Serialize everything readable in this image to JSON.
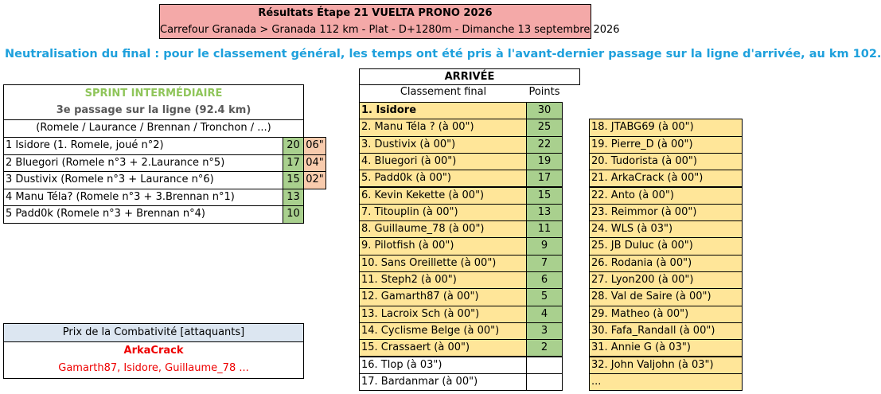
{
  "header": {
    "title": "Résultats Étape 21 VUELTA PRONO 2026",
    "subtitle": "Carrefour Granada > Granada 112 km - Plat - D+1280m  - Dimanche 13 septembre 2026"
  },
  "note": "Neutralisation du final : pour le classement général, les temps ont été pris à l'avant-dernier passage sur la ligne d'arrivée, au km 102.",
  "sprint": {
    "title": "SPRINT INTERMÉDIAIRE",
    "subtitle": "3e passage sur la ligne (92.4 km)",
    "riders": "(Romele / Laurance / Brennan / Tronchon / ...)",
    "rows": [
      {
        "label": "1 Isidore (1. Romele, joué n°2)",
        "points": 20,
        "bonus": "06\""
      },
      {
        "label": "2 Bluegori (Romele n°3 + 2.Laurance n°5)",
        "points": 17,
        "bonus": "04\""
      },
      {
        "label": "3 Dustivix (Romele n°3 + Laurance n°6)",
        "points": 15,
        "bonus": "02\""
      },
      {
        "label": "4 Manu Téla? (Romele n°3 + 3.Brennan n°1)",
        "points": 13
      },
      {
        "label": "5 Padd0k (Romele n°3 + Brennan n°4)",
        "points": 10
      }
    ]
  },
  "combativite": {
    "title": "Prix de la Combativité [attaquants]",
    "winner": "ArkaCrack",
    "others": "Gamarth87, Isidore, Guillaume_78 ..."
  },
  "arrivee": {
    "title": "ARRIVÉE",
    "col_name": "Classement final",
    "col_points": "Points",
    "rows": [
      {
        "label": "1. Isidore",
        "points": 30
      },
      {
        "label": "2. Manu Téla ? (à 00\")",
        "points": 25
      },
      {
        "label": "3. Dustivix (à 00\")",
        "points": 22
      },
      {
        "label": "4. Bluegori (à 00\")",
        "points": 19
      },
      {
        "label": "5. Padd0k (à 00\")",
        "points": 17
      },
      {
        "label": "6. Kevin Kekette (à 00\")",
        "points": 15
      },
      {
        "label": "7. Titouplin (à 00\")",
        "points": 13
      },
      {
        "label": "8. Guillaume_78 (à 00\")",
        "points": 11
      },
      {
        "label": "9. Pilotfish (à 00\")",
        "points": 9
      },
      {
        "label": "10. Sans Oreillette (à 00\")",
        "points": 7
      },
      {
        "label": "11. Steph2 (à 00\")",
        "points": 6
      },
      {
        "label": "12. Gamarth87 (à 00\")",
        "points": 5
      },
      {
        "label": "13. Lacroix Sch (à 00\")",
        "points": 4
      },
      {
        "label": "14. Cyclisme Belge (à 00\")",
        "points": 3
      },
      {
        "label": "15. Crassaert (à 00\")",
        "points": 2
      },
      {
        "label": "16. Tlop (à 03\")"
      },
      {
        "label": "17. Bardanmar (à 00\")"
      }
    ],
    "more": [
      "18. JTABG69 (à 00\")",
      "19. Pierre_D (à 00\")",
      "20. Tudorista (à 00\")",
      "21. ArkaCrack (à 00\")",
      "22. Anto (à 00\")",
      "23. Reimmor (à 00\")",
      "24. WLS (à 03\")",
      "25. JB Duluc (à 00\")",
      "26. Rodania (à 00\")",
      "27. Lyon200 (à 00\")",
      "28. Val de Saire (à 00\")",
      "29. Matheo (à 00\")",
      "30. Fafa_Randall (à 00\")",
      "31. Annie G (à 03\")",
      "32. John Valjohn (à 03\")",
      "..."
    ]
  }
}
